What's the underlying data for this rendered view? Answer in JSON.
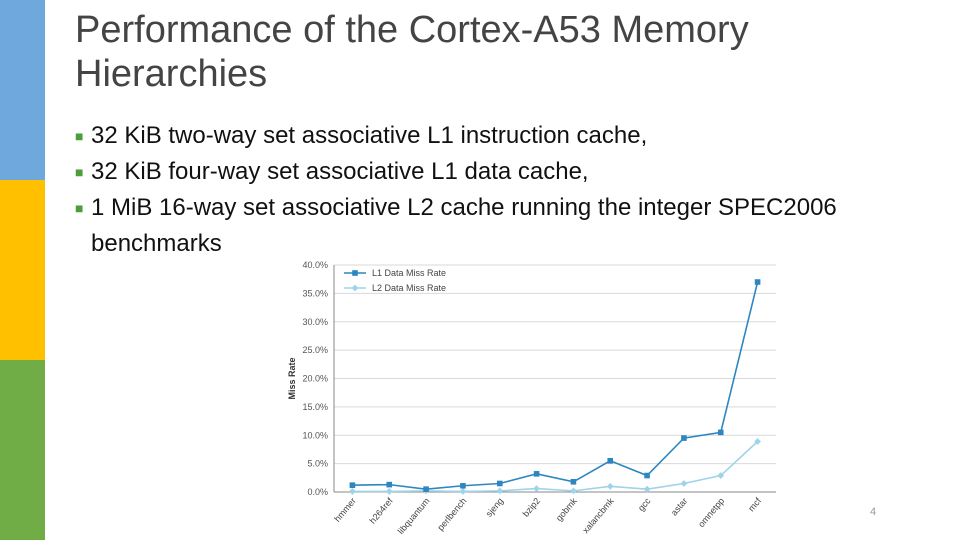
{
  "slide": {
    "title": "Performance of the Cortex-A53 Memory Hierarchies",
    "bullets": [
      "32 KiB two-way set associative L1 instruction cache,",
      "32 KiB four-way set associative L1 data cache,",
      "1 MiB 16-way set associative L2 cache running the integer SPEC2006 benchmarks"
    ],
    "page_number": "4"
  },
  "colors": {
    "accent_blue": "#6fa8dc",
    "accent_yellow": "#ffc000",
    "accent_green": "#70ad47",
    "bullet_marker": "#4b9e3a",
    "series_l1": "#2e86c1",
    "series_l2": "#9fd3ea"
  },
  "chart_data": {
    "type": "line",
    "title": "",
    "xlabel": "",
    "ylabel": "Miss Rate",
    "ylim": [
      0,
      40
    ],
    "ytick_step": 5,
    "ytick_labels": [
      "0.0%",
      "5.0%",
      "10.0%",
      "15.0%",
      "20.0%",
      "25.0%",
      "30.0%",
      "35.0%",
      "40.0%"
    ],
    "grid": true,
    "legend_position": "top-left",
    "categories": [
      "hmmer",
      "h264ref",
      "libquantum",
      "perlbench",
      "sjeng",
      "bzip2",
      "gobmk",
      "xalancbmk",
      "gcc",
      "astar",
      "omnetpp",
      "mcf"
    ],
    "series": [
      {
        "name": "L1 Data Miss Rate",
        "marker": "square",
        "values": [
          1.2,
          1.3,
          0.5,
          1.1,
          1.5,
          3.2,
          1.8,
          5.5,
          2.9,
          9.5,
          10.5,
          37.0
        ]
      },
      {
        "name": "L2 Data Miss Rate",
        "marker": "diamond",
        "values": [
          0.1,
          0.1,
          0.2,
          0.1,
          0.2,
          0.6,
          0.2,
          1.0,
          0.5,
          1.5,
          2.9,
          8.9
        ]
      }
    ]
  }
}
